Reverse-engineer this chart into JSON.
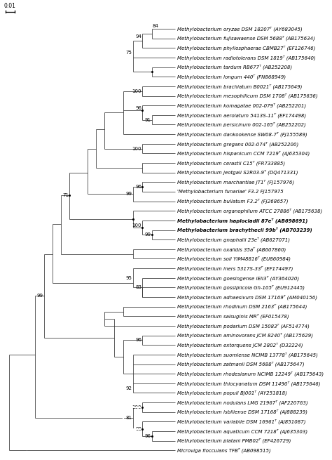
{
  "scale_bar_label": "0.01",
  "bg_color": "#ffffff",
  "line_color": "#333333",
  "dot_color": "#000000",
  "label_fontsize": 5.0,
  "bootstrap_fontsize": 5.0,
  "taxa": [
    {
      "y": 1,
      "name": "Methylobacterium oryzae DSM 18207ᵀ (AY683045)",
      "bold": false
    },
    {
      "y": 2,
      "name": "Methylobacterium fujisawaense DSM 5688ᵀ (AB175634)",
      "bold": false
    },
    {
      "y": 3,
      "name": "Methylobacterium phyllosphaerae CBMB27ᵀ (EF126746)",
      "bold": false
    },
    {
      "y": 4,
      "name": "Methylobacterium radiotolerans DSM 1819ᵀ (AB175640)",
      "bold": false
    },
    {
      "y": 5,
      "name": "Methylobacterium tardum RB677ᵀ (AB252208)",
      "bold": false
    },
    {
      "y": 6,
      "name": "Methylobacterium longum 440ᵀ (FN868949)",
      "bold": false
    },
    {
      "y": 7,
      "name": "Methylobacterium brachiatum B0021ᵀ (AB175649)",
      "bold": false
    },
    {
      "y": 8,
      "name": "Methylobacterium mesophilicum DSM 1708ᵀ (AB175636)",
      "bold": false
    },
    {
      "y": 9,
      "name": "Methylobacterium komagatae 002-079ᵀ (AB252201)",
      "bold": false
    },
    {
      "y": 10,
      "name": "Methylobacterium aerolatum 5413S-11ᵀ (EF174498)",
      "bold": false
    },
    {
      "y": 11,
      "name": "Methylobacterium persicinum 002-165ᵀ (AB252202)",
      "bold": false
    },
    {
      "y": 12,
      "name": "Methylobacterium dankookense SW08-7ᵀ (FJ155589)",
      "bold": false
    },
    {
      "y": 13,
      "name": "Methylobacterium gregans 002-074ᵀ (AB252200)",
      "bold": false
    },
    {
      "y": 14,
      "name": "Methylobacterium hispanicum CCM 7219ᵀ (AJ635304)",
      "bold": false
    },
    {
      "y": 15,
      "name": "Methylobacterium cerastii C15ᵀ (FR733885)",
      "bold": false
    },
    {
      "y": 16,
      "name": "Methylobacterium jeotgali S2R03-9ᵀ (DQ471331)",
      "bold": false
    },
    {
      "y": 17,
      "name": "Methylobacterium marchantiae JT1ᵀ (FJ157976)",
      "bold": false
    },
    {
      "y": 18,
      "name": "'Methylobacterium funariae' F3.2 FJ157975",
      "bold": false
    },
    {
      "y": 19,
      "name": "Methylobacterium bullatum F3.2ᵀ (FJ268657)",
      "bold": false
    },
    {
      "y": 20,
      "name": "Methylobacterium organophilum ATCC 27886ᵀ (AB175638)",
      "bold": false
    },
    {
      "y": 21,
      "name": "Methylobacterium haplocladii 87eᵀ (AB698691)",
      "bold": true
    },
    {
      "y": 22,
      "name": "Methylobacterium brachythecii 99bᵀ (AB703239)",
      "bold": true
    },
    {
      "y": 23,
      "name": "Methylobacterium gnaphalii 23eᵀ (AB627071)",
      "bold": false
    },
    {
      "y": 24,
      "name": "Methylobacterium oxalidis 35aᵀ (AB607860)",
      "bold": false
    },
    {
      "y": 25,
      "name": "Methylobacterium soli YIM48816ᵀ (EU860984)",
      "bold": false
    },
    {
      "y": 26,
      "name": "Methylobacterium iners 5317S-33ᵀ (EF174497)",
      "bold": false
    },
    {
      "y": 27,
      "name": "Methylobacterium goesingense iEII3ᵀ (AY364020)",
      "bold": false
    },
    {
      "y": 28,
      "name": "Methylobacterium gossipiicola Gh-105ᵀ (EU912445)",
      "bold": false
    },
    {
      "y": 29,
      "name": "Methylobacterium adhaesivum DSM 17169ᵀ (AM040156)",
      "bold": false
    },
    {
      "y": 30,
      "name": "Methylobacterium rhodinum DSM 2163ᵀ (AB175644)",
      "bold": false
    },
    {
      "y": 31,
      "name": "Methylobacterium salsuginis MRᵀ (EF015478)",
      "bold": false
    },
    {
      "y": 32,
      "name": "Methylobacterium podarium DSM 15083ᵀ (AF514774)",
      "bold": false
    },
    {
      "y": 33,
      "name": "Methylobacterium aminovorans JCM 8240ᵀ (AB175629)",
      "bold": false
    },
    {
      "y": 34,
      "name": "Methylobacterium extorquens JCM 2802ᵀ (D32224)",
      "bold": false
    },
    {
      "y": 35,
      "name": "Methylobacterium suomiense NCIMB 13778ᵀ (AB175645)",
      "bold": false
    },
    {
      "y": 36,
      "name": "Methylobacterium zatmanii DSM 5688ᵀ (AB175647)",
      "bold": false
    },
    {
      "y": 37,
      "name": "Methylobacterium rhodesianum NCIMB 12249ᵀ (AB175643)",
      "bold": false
    },
    {
      "y": 38,
      "name": "Methylobacterium thiocyanatum DSM 11490ᵀ (AB175646)",
      "bold": false
    },
    {
      "y": 39,
      "name": "Methylobacterium populi BJ001ᵀ (AY251818)",
      "bold": false
    },
    {
      "y": 40,
      "name": "Methylobacterium nodulans LMG 21967ᵀ (AF220763)",
      "bold": false
    },
    {
      "y": 41,
      "name": "Methylobacterium isbiliense DSM 17168ᵀ (AJ888239)",
      "bold": false
    },
    {
      "y": 42,
      "name": "Methylobacterium variabile DSM 16961ᵀ (AJ851087)",
      "bold": false
    },
    {
      "y": 43,
      "name": "Methylobacterium aquaticum CCM 7218ᵀ (AJ635303)",
      "bold": false
    },
    {
      "y": 44,
      "name": "Methylobacterium platani PMB02ᵀ (EF426729)",
      "bold": false
    },
    {
      "y": 45,
      "name": "Microviga flocculans TFBᵀ (AB098515)",
      "bold": false
    }
  ]
}
